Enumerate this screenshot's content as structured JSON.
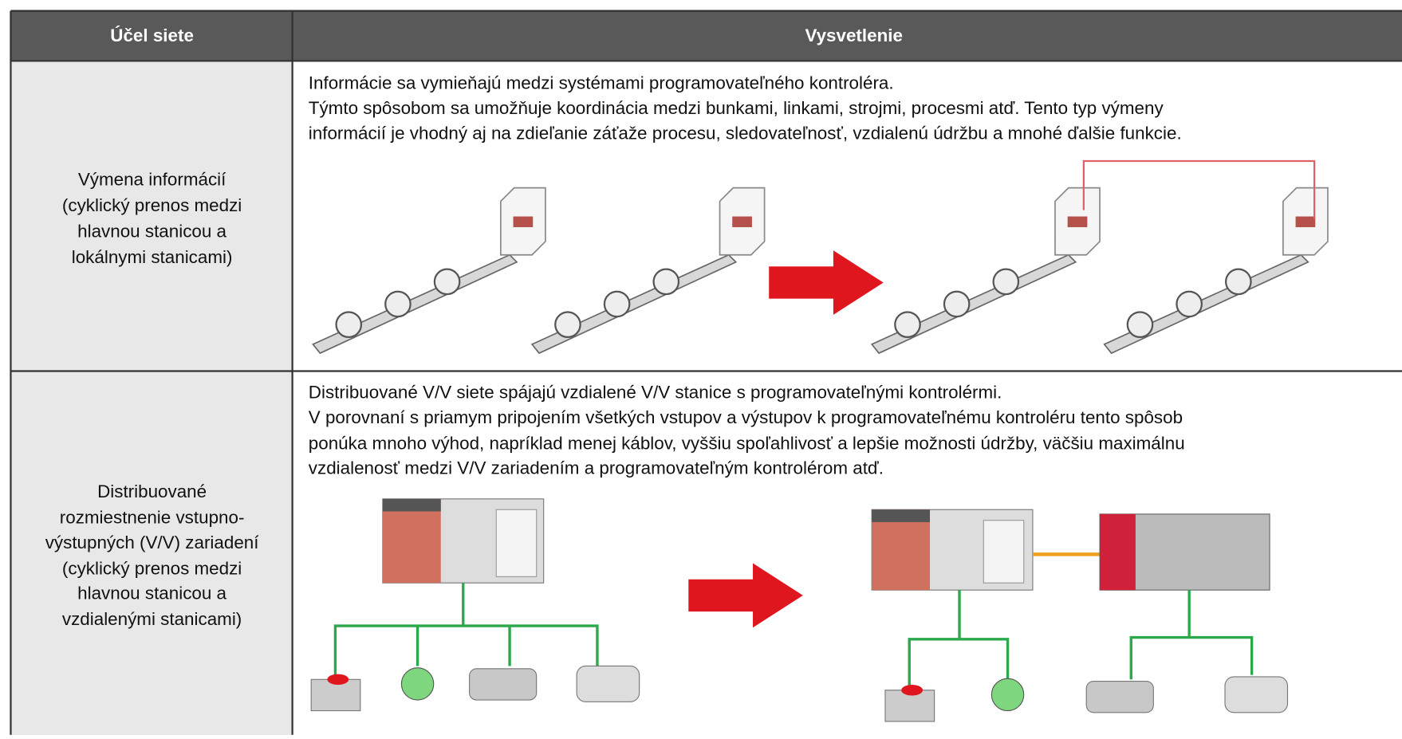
{
  "table": {
    "header": [
      "Účel siete",
      "Vysvetlenie"
    ],
    "rows": [
      {
        "purpose": [
          "Výmena informácií",
          "(cyklický prenos medzi",
          "hlavnou stanicou a",
          "lokálnymi stanicami)"
        ],
        "description": [
          "Informácie sa vymieňajú medzi systémami programovateľného kontroléra.",
          "Týmto spôsobom sa umožňuje koordinácia medzi bunkami, linkami, strojmi, procesmi atď. Tento typ výmeny",
          "informácií je vhodný aj na zdieľanie záťaže procesu, sledovateľnosť, vzdialenú údržbu a mnohé ďalšie funkcie."
        ]
      },
      {
        "purpose": [
          "Distribuované",
          "rozmiestnenie vstupno-",
          "výstupných (V/V) zariadení",
          "(cyklický prenos medzi",
          "hlavnou stanicou a",
          "vzdialenými stanicami)"
        ],
        "description": [
          "Distribuované V/V siete spájajú vzdialené V/V stanice s programovateľnými kontrolérmi.",
          "V porovnaní s priamym pripojením všetkých vstupov a výstupov k programovateľnému kontroléru tento spôsob",
          "ponúka mnoho výhod, napríklad menej káblov, vyššiu spoľahlivosť a lepšie možnosti údržby, väčšiu maximálnu",
          "vzdialenosť medzi V/V zariadením a programovateľným kontrolérom atď."
        ]
      }
    ]
  }
}
